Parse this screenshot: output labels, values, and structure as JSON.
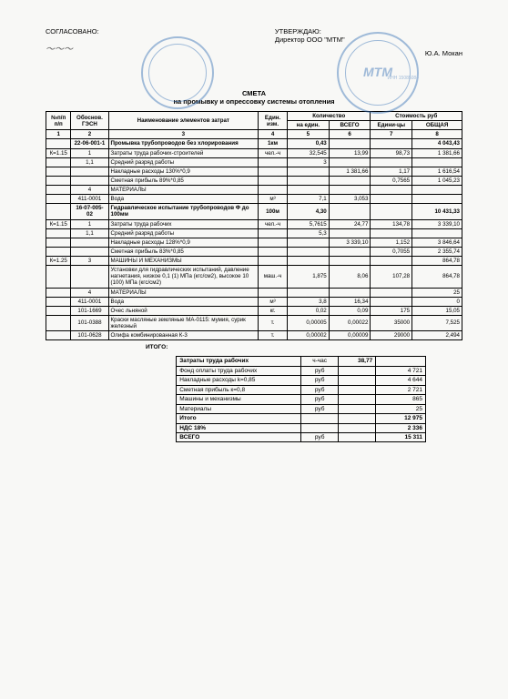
{
  "header": {
    "left_label": "СОГЛАСОВАНО:",
    "right_label": "УТВЕРЖДАЮ:",
    "right_sub": "Директор ООО \"МТМ\"",
    "right_name": "Ю.А. Мокан",
    "stamp_color": "#3570b5",
    "stamp_right_text": "МТМ",
    "stamp_right_inn": "ИНН 15085084"
  },
  "title": {
    "line1": "СМЕТА",
    "line2": "на промывку и опрессовку системы отопления"
  },
  "cols": {
    "c1": "№п/п п/п",
    "c2": "Обоснов. ГЭСН",
    "c3": "Наименование элементов затрат",
    "c4": "Един. изм.",
    "c5a": "Количество",
    "c5": "на един.",
    "c6": "ВСЕГО",
    "c7a": "Стоимость руб",
    "c7": "Едини-цы",
    "c8": "ОБЩАЯ",
    "n1": "1",
    "n2": "2",
    "n3": "3",
    "n4": "4",
    "n5": "5",
    "n6": "6",
    "n7": "7",
    "n8": "8"
  },
  "rows": [
    {
      "t": "head",
      "c2": "22-06-001-1",
      "c3": "Промывка трубопроводов без хлорирования",
      "c4": "1км",
      "c5": "0,43",
      "c8": "4 043,43"
    },
    {
      "c1": "К=1.15",
      "c2": "1",
      "c3": "Затраты труда рабочих-строителей",
      "c4": "чел.-ч",
      "c5": "32,545",
      "c6": "13,99",
      "c7": "98,73",
      "c8": "1 381,66"
    },
    {
      "c2": "1,1",
      "c3": "Средний разряд работы",
      "c5": "3"
    },
    {
      "c3": "Накладные расходы 130%*0,9",
      "c6": "1 381,66",
      "c7": "1,17",
      "c8": "1 616,54"
    },
    {
      "c3": "Сметная прибыль 89%*0,85",
      "c7": "0,7565",
      "c8": "1 045,23"
    },
    {
      "c2": "4",
      "c3": "МАТЕРИАЛЫ"
    },
    {
      "c2": "411-0001",
      "c3": "Вода",
      "c4": "м³",
      "c5": "7,1",
      "c6": "3,053"
    },
    {
      "t": "head",
      "c2": "16-07-005-02",
      "c3": "Гидравлическое испытание трубопроводов Ф до 100мм",
      "c4": "100м",
      "c5": "4,30",
      "c8": "10 431,33"
    },
    {
      "c1": "К=1.15",
      "c2": "1",
      "c3": "Затраты труда рабочих",
      "c4": "чел.-ч",
      "c5": "5,7615",
      "c6": "24,77",
      "c7": "134,78",
      "c8": "3 339,10"
    },
    {
      "c2": "1,1",
      "c3": "Средний разряд работы",
      "c5": "5,3"
    },
    {
      "c3": "Накладные расходы 128%*0,9",
      "c6": "3 339,10",
      "c7": "1,152",
      "c8": "3 846,64"
    },
    {
      "c3": "Сметная прибыль 83%*0,85",
      "c7": "0,7055",
      "c8": "2 355,74"
    },
    {
      "c1": "К=1.25",
      "c2": "3",
      "c3": "МАШИНЫ И МЕХАНИЗМЫ",
      "c8": "864,78"
    },
    {
      "c3": "Установки для гидравлических испытаний, давление нагнетания, низкое 0,1 (1) МПа (кгс/см2), высокое 10 (100) МПа (кгс/см2)",
      "c4": "маш.-ч",
      "c5": "1,875",
      "c6": "8,06",
      "c7": "107,28",
      "c8": "864,78"
    },
    {
      "c2": "4",
      "c3": "МАТЕРИАЛЫ",
      "c8": "25"
    },
    {
      "c2": "411-0001",
      "c3": "Вода",
      "c4": "м³",
      "c5": "3,8",
      "c6": "16,34",
      "c8": "0"
    },
    {
      "c2": "101-1669",
      "c3": "Очес льняной",
      "c4": "кг.",
      "c5": "0,02",
      "c6": "0,09",
      "c7": "175",
      "c8": "15,05"
    },
    {
      "c2": "101-0388",
      "c3": "Краски масляные земляные МА-0115: мумия, сурик железный",
      "c4": "т.",
      "c5": "0,00005",
      "c6": "0,00022",
      "c7": "35000",
      "c8": "7,525"
    },
    {
      "c2": "101-0628",
      "c3": "Олифа комбинированная К-3",
      "c4": "т.",
      "c5": "0,00002",
      "c6": "0,00009",
      "c7": "29000",
      "c8": "2,494"
    }
  ],
  "totals_label": "ИТОГО:",
  "summary": [
    {
      "l": "Затраты труда рабочих",
      "u": "ч-час",
      "v": "38,77",
      "b": true
    },
    {
      "l": "Фонд оплаты труда рабочих",
      "u": "руб",
      "r": "4 721"
    },
    {
      "l": "Накладные расходы k=0,85",
      "u": "руб",
      "r": "4 644"
    },
    {
      "l": "Сметная прибыль к=0,8",
      "u": "руб",
      "r": "2 721"
    },
    {
      "l": "Машины и механизмы",
      "u": "руб",
      "r": "865"
    },
    {
      "l": "Материалы",
      "u": "руб",
      "r": "25"
    },
    {
      "l": "Итого",
      "r": "12 975",
      "b": true
    },
    {
      "l": "НДС 18%",
      "r": "2 336",
      "b": true
    },
    {
      "l": "ВСЕГО",
      "u": "руб",
      "r": "15 311",
      "b": true
    }
  ],
  "style": {
    "col_widths": [
      "6%",
      "9%",
      "36%",
      "7%",
      "10%",
      "10%",
      "10%",
      "12%"
    ],
    "bg": "#f8f8f6"
  }
}
